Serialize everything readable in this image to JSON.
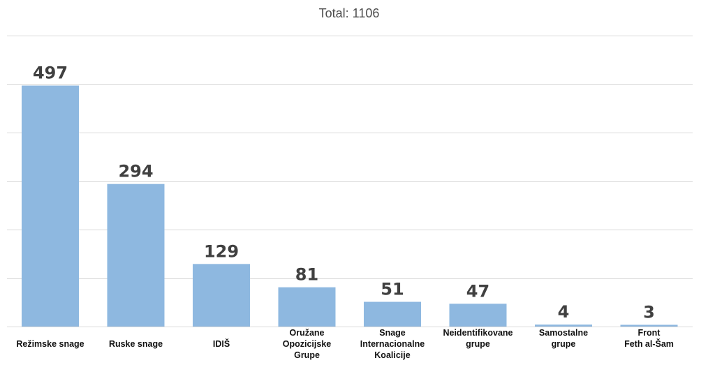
{
  "chart_data": {
    "type": "bar",
    "title": "Total: 1106",
    "xlabel": "",
    "ylabel": "",
    "categories": [
      "Režimske snage",
      "Ruske snage",
      "IDIŠ",
      "Oružane\nOpozicijske\nGrupe",
      "Snage\nInternacionalne\nKoalicije",
      "Neidentifikovane\ngrupe",
      "Samostalne\ngrupe",
      "Front\nFeth al-Šam"
    ],
    "values": [
      497,
      294,
      129,
      81,
      51,
      47,
      4,
      3
    ],
    "ylim": [
      0,
      600
    ],
    "grid": true,
    "bar_color": "#8eb8e0"
  }
}
